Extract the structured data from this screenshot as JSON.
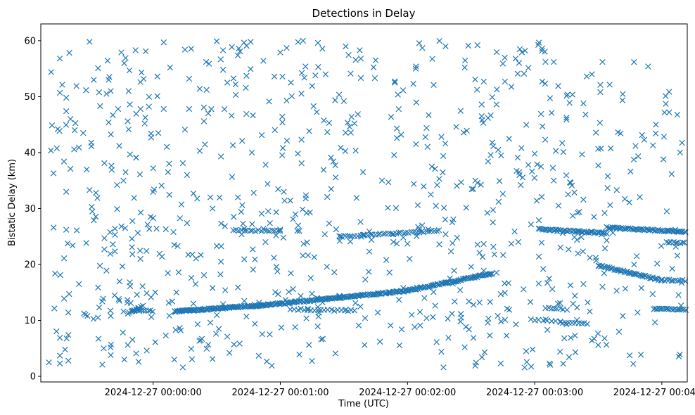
{
  "chart_data": {
    "type": "scatter",
    "title": "Detections in Delay",
    "xlabel": "Time (UTC)",
    "ylabel": "Bistatic Delay (km)",
    "marker": "x",
    "color": "#1f77b4",
    "xlim_seconds": [
      -53,
      252
    ],
    "ylim": [
      -1,
      63
    ],
    "x_ticks": [
      {
        "value": 0,
        "label": "2024-12-27 00:00:00"
      },
      {
        "value": 60,
        "label": "2024-12-27 00:01:00"
      },
      {
        "value": 120,
        "label": "2024-12-27 00:02:00"
      },
      {
        "value": 180,
        "label": "2024-12-27 00:03:00"
      },
      {
        "value": 240,
        "label": "2024-12-27 00:04:00"
      }
    ],
    "y_ticks": [
      0,
      10,
      20,
      30,
      40,
      50,
      60
    ],
    "track_segments": [
      {
        "x0": 10,
        "x1": 55,
        "y0": 11.6,
        "y1": 12.8,
        "n": 110
      },
      {
        "x0": 55,
        "x1": 120,
        "y0": 12.8,
        "y1": 15.3,
        "n": 120
      },
      {
        "x0": 120,
        "x1": 160,
        "y0": 15.3,
        "y1": 18.4,
        "n": 70
      },
      {
        "x0": 38,
        "x1": 60,
        "y0": 26.1,
        "y1": 26.0,
        "n": 18
      },
      {
        "x0": 88,
        "x1": 135,
        "y0": 25.0,
        "y1": 26.0,
        "n": 40
      },
      {
        "x0": 182,
        "x1": 214,
        "y0": 26.3,
        "y1": 25.6,
        "n": 50
      },
      {
        "x0": 214,
        "x1": 252,
        "y0": 26.6,
        "y1": 25.8,
        "n": 60
      },
      {
        "x0": 210,
        "x1": 240,
        "y0": 19.8,
        "y1": 17.2,
        "n": 45
      },
      {
        "x0": 240,
        "x1": 252,
        "y0": 17.2,
        "y1": 17.1,
        "n": 12
      },
      {
        "x0": 242,
        "x1": 252,
        "y0": 24.0,
        "y1": 23.8,
        "n": 10
      },
      {
        "x0": 236,
        "x1": 252,
        "y0": 12.1,
        "y1": 11.9,
        "n": 20
      },
      {
        "x0": 65,
        "x1": 95,
        "y0": 12.0,
        "y1": 11.7,
        "n": 20
      },
      {
        "x0": 185,
        "x1": 195,
        "y0": 12.3,
        "y1": 12.0,
        "n": 8
      },
      {
        "x0": 178,
        "x1": 192,
        "y0": 10.1,
        "y1": 9.9,
        "n": 8
      },
      {
        "x0": 192,
        "x1": 205,
        "y0": 9.6,
        "y1": 9.4,
        "n": 10
      },
      {
        "x0": -12,
        "x1": -5,
        "y0": 11.2,
        "y1": 12.5,
        "n": 10
      },
      {
        "x0": -10,
        "x1": 0,
        "y0": 11.8,
        "y1": 11.7,
        "n": 10
      }
    ],
    "random_noise": {
      "count": 520,
      "x_range": [
        -50,
        250
      ],
      "y_range": [
        1.5,
        60
      ]
    },
    "scattered_points": [
      [
        -47,
        36.3
      ],
      [
        -45,
        44.2
      ],
      [
        -44,
        56.8
      ],
      [
        -44,
        50.7
      ],
      [
        -44,
        6.9
      ],
      [
        -44,
        3.7
      ],
      [
        -44,
        2.3
      ],
      [
        -42,
        13.9
      ],
      [
        -42,
        21.1
      ],
      [
        -41,
        33.0
      ],
      [
        -41,
        26.2
      ],
      [
        -41,
        49.8
      ],
      [
        -41,
        47.4
      ],
      [
        -40,
        7.4
      ],
      [
        -40,
        2.8
      ],
      [
        -40,
        11.4
      ],
      [
        -39,
        46.0
      ],
      [
        -39,
        37.1
      ],
      [
        -38,
        23.4
      ],
      [
        -37,
        44.0
      ],
      [
        -36,
        26.1
      ],
      [
        -35,
        40.9
      ],
      [
        -35,
        16.5
      ],
      [
        -33,
        43.5
      ],
      [
        -32,
        11.0
      ],
      [
        -31,
        10.8
      ],
      [
        -30,
        59.8
      ],
      [
        -30,
        33.3
      ],
      [
        -29,
        30.3
      ],
      [
        -28,
        53.0
      ],
      [
        -28,
        27.9
      ],
      [
        -27,
        32.8
      ],
      [
        -26,
        10.5
      ],
      [
        -25,
        48.3
      ],
      [
        -24,
        13.4
      ],
      [
        -24,
        2.1
      ],
      [
        -23,
        38.1
      ],
      [
        -23,
        24.7
      ],
      [
        -23,
        22.7
      ],
      [
        -22,
        50.5
      ],
      [
        -22,
        18.9
      ],
      [
        -21,
        45.4
      ],
      [
        -21,
        53.0
      ],
      [
        -20,
        51.0
      ],
      [
        -20,
        3.8
      ],
      [
        -19,
        46.7
      ],
      [
        -19,
        23.6
      ],
      [
        -18,
        26.4
      ],
      [
        -18,
        25.3
      ],
      [
        -17,
        29.9
      ],
      [
        -17,
        34.2
      ],
      [
        -16,
        41.2
      ],
      [
        -16,
        13.5
      ],
      [
        -15,
        57.9
      ],
      [
        -15,
        26.8
      ],
      [
        -14,
        35.0
      ],
      [
        -14,
        11.6
      ],
      [
        -13,
        56.9
      ],
      [
        -13,
        36.5
      ],
      [
        -12,
        45.6
      ],
      [
        -12,
        5.6
      ],
      [
        -11,
        16.8
      ],
      [
        -11,
        48.6
      ],
      [
        -10,
        24.6
      ],
      [
        -9,
        31.9
      ],
      [
        -8,
        39.1
      ],
      [
        -8,
        4.1
      ],
      [
        -6,
        52.6
      ],
      [
        -6,
        21.0
      ],
      [
        -5,
        16.1
      ],
      [
        -4,
        45.2
      ],
      [
        -3,
        4.6
      ],
      [
        -2,
        48.2
      ],
      [
        -1,
        43.4
      ],
      [
        0,
        37.2
      ],
      [
        0,
        28.3
      ],
      [
        1,
        15.0
      ],
      [
        1,
        6.1
      ],
      [
        2,
        50.1
      ],
      [
        2,
        53.6
      ],
      [
        3,
        21.9
      ],
      [
        4,
        34.1
      ],
      [
        5,
        59.7
      ],
      [
        5,
        47.8
      ],
      [
        6,
        26.3
      ],
      [
        6,
        7.3
      ],
      [
        7,
        36.5
      ],
      [
        8,
        55.2
      ],
      [
        9,
        13.4
      ],
      [
        10,
        3.0
      ],
      [
        10,
        23.5
      ],
      [
        11,
        15.0
      ],
      [
        12,
        18.6
      ],
      [
        13,
        8.2
      ],
      [
        14,
        38.1
      ],
      [
        14,
        1.6
      ],
      [
        15,
        58.4
      ],
      [
        15,
        44.1
      ],
      [
        16,
        27.4
      ],
      [
        16,
        36.0
      ],
      [
        17,
        53.2
      ],
      [
        17,
        47.8
      ],
      [
        18,
        4.9
      ],
      [
        19,
        13.0
      ],
      [
        19,
        32.7
      ],
      [
        20,
        16.5
      ],
      [
        21,
        9.3
      ],
      [
        22,
        40.3
      ],
      [
        22,
        51.4
      ],
      [
        23,
        6.7
      ],
      [
        24,
        45.6
      ],
      [
        24,
        18.1
      ],
      [
        25,
        56.2
      ],
      [
        26,
        47.0
      ],
      [
        27,
        32.0
      ],
      [
        28,
        3.1
      ],
      [
        28,
        30.0
      ],
      [
        30,
        59.9
      ],
      [
        30,
        23.3
      ],
      [
        31,
        8.5
      ],
      [
        32,
        39.3
      ],
      [
        32,
        20.5
      ],
      [
        33,
        54.8
      ],
      [
        34,
        15.4
      ],
      [
        35,
        52.5
      ],
      [
        35,
        7.1
      ],
      [
        36,
        4.2
      ],
      [
        37,
        46.6
      ],
      [
        38,
        28.5
      ],
      [
        40,
        32.0
      ],
      [
        40,
        15.9
      ],
      [
        41,
        58.1
      ],
      [
        42,
        42.1
      ],
      [
        43,
        26.4
      ],
      [
        44,
        46.9
      ],
      [
        44,
        10.7
      ],
      [
        46,
        59.8
      ],
      [
        47,
        22.7
      ],
      [
        48,
        9.4
      ],
      [
        50,
        13.2
      ],
      [
        52,
        56.4
      ],
      [
        53,
        24.0
      ],
      [
        54,
        34.4
      ],
      [
        55,
        7.5
      ],
      [
        56,
        1.9
      ],
      [
        57,
        21.2
      ],
      [
        58,
        25.2
      ],
      [
        59,
        14.7
      ],
      [
        60,
        57.9
      ],
      [
        61,
        45.4
      ],
      [
        62,
        31.4
      ],
      [
        63,
        58.7
      ],
      [
        63,
        49.3
      ],
      [
        64,
        15.1
      ],
      [
        65,
        52.5
      ],
      [
        66,
        28.1
      ],
      [
        67,
        8.8
      ],
      [
        68,
        26.0
      ],
      [
        69,
        3.9
      ],
      [
        70,
        42.3
      ],
      [
        71,
        23.7
      ],
      [
        72,
        31.8
      ],
      [
        73,
        12.1
      ],
      [
        74,
        29.3
      ],
      [
        75,
        51.9
      ],
      [
        76,
        21.3
      ],
      [
        78,
        10.7
      ],
      [
        80,
        6.7
      ],
      [
        81,
        25.4
      ],
      [
        82,
        19.6
      ],
      [
        83,
        45.3
      ],
      [
        84,
        33.5
      ],
      [
        85,
        38.4
      ],
      [
        86,
        4.1
      ],
      [
        88,
        14.4
      ],
      [
        90,
        49.2
      ],
      [
        91,
        11.9
      ],
      [
        93,
        24.1
      ],
      [
        95,
        45.2
      ],
      [
        96,
        31.9
      ],
      [
        97,
        9.1
      ],
      [
        98,
        56.8
      ],
      [
        99,
        36.5
      ],
      [
        100,
        10.4
      ],
      [
        102,
        22.3
      ],
      [
        103,
        24.4
      ],
      [
        105,
        56.5
      ],
      [
        106,
        11.4
      ],
      [
        107,
        6.2
      ],
      [
        108,
        35.0
      ],
      [
        110,
        20.8
      ],
      [
        111,
        34.7
      ],
      [
        112,
        9.1
      ],
      [
        113,
        25.4
      ],
      [
        114,
        52.5
      ],
      [
        115,
        42.6
      ],
      [
        115,
        44.3
      ],
      [
        116,
        13.7
      ],
      [
        117,
        43.2
      ],
      [
        118,
        15.8
      ],
      [
        120,
        23.7
      ],
      [
        121,
        21.0
      ],
      [
        122,
        11.0
      ],
      [
        123,
        34.4
      ],
      [
        124,
        55.4
      ],
      [
        125,
        26.7
      ],
      [
        126,
        9.1
      ],
      [
        127,
        58.7
      ],
      [
        128,
        14.0
      ],
      [
        129,
        44.4
      ],
      [
        130,
        46.7
      ],
      [
        131,
        32.5
      ],
      [
        132,
        10.6
      ],
      [
        133,
        37.1
      ],
      [
        134,
        34.2
      ],
      [
        135,
        35.3
      ],
      [
        135,
        23.6
      ],
      [
        136,
        42.8
      ],
      [
        136,
        4.4
      ],
      [
        137,
        1.6
      ],
      [
        138,
        25.4
      ],
      [
        139,
        10.3
      ],
      [
        140,
        17.5
      ],
      [
        142,
        18.9
      ],
      [
        143,
        44.6
      ],
      [
        145,
        9.8
      ],
      [
        147,
        5.2
      ],
      [
        147,
        55.2
      ],
      [
        148,
        43.9
      ],
      [
        149,
        13.4
      ],
      [
        149,
        8.4
      ],
      [
        150,
        19.6
      ],
      [
        151,
        33.5
      ],
      [
        152,
        1.9
      ],
      [
        152,
        35.0
      ],
      [
        153,
        34.6
      ],
      [
        153,
        59.2
      ],
      [
        154,
        13.2
      ],
      [
        155,
        48.6
      ],
      [
        155,
        46.5
      ],
      [
        156,
        52.7
      ],
      [
        156,
        18.9
      ],
      [
        158,
        46.2
      ],
      [
        159,
        13.3
      ],
      [
        160,
        49.9
      ],
      [
        160,
        41.8
      ],
      [
        161,
        21.8
      ],
      [
        162,
        48.6
      ],
      [
        163,
        31.2
      ],
      [
        164,
        14.7
      ],
      [
        164,
        2.3
      ],
      [
        165,
        55.9
      ],
      [
        166,
        52.7
      ],
      [
        167,
        12.1
      ],
      [
        168,
        11.9
      ],
      [
        169,
        23.7
      ],
      [
        171,
        56.8
      ],
      [
        172,
        39.1
      ],
      [
        172,
        54.1
      ],
      [
        173,
        58.5
      ],
      [
        174,
        57.9
      ],
      [
        175,
        54.1
      ],
      [
        176,
        4.5
      ],
      [
        177,
        37.8
      ],
      [
        178,
        13.3
      ],
      [
        179,
        4.8
      ],
      [
        180,
        39.8
      ],
      [
        181,
        31.4
      ],
      [
        182,
        21.4
      ],
      [
        182,
        27.9
      ],
      [
        183,
        46.9
      ],
      [
        183,
        37.5
      ],
      [
        184,
        19.2
      ],
      [
        185,
        42.3
      ],
      [
        186,
        16.7
      ],
      [
        186,
        8.3
      ],
      [
        187,
        2.3
      ],
      [
        188,
        47.1
      ],
      [
        189,
        56.2
      ],
      [
        189,
        35.0
      ],
      [
        190,
        40.3
      ],
      [
        191,
        13.0
      ],
      [
        192,
        4.4
      ],
      [
        193,
        41.7
      ],
      [
        194,
        6.8
      ],
      [
        195,
        45.9
      ],
      [
        196,
        22.7
      ],
      [
        197,
        6.9
      ],
      [
        197,
        34.6
      ],
      [
        198,
        28.7
      ],
      [
        199,
        14.4
      ],
      [
        200,
        12.3
      ],
      [
        200,
        24.4
      ],
      [
        201,
        29.4
      ],
      [
        202,
        24.9
      ],
      [
        203,
        16.5
      ],
      [
        203,
        48.8
      ],
      [
        204,
        46.8
      ],
      [
        205,
        13.2
      ],
      [
        206,
        21.2
      ],
      [
        207,
        54.0
      ],
      [
        207,
        6.4
      ],
      [
        208,
        28.5
      ],
      [
        209,
        20.7
      ],
      [
        210,
        37.7
      ],
      [
        210,
        5.6
      ],
      [
        211,
        52.1
      ],
      [
        211,
        50.8
      ],
      [
        212,
        56.2
      ],
      [
        212,
        16.0
      ],
      [
        213,
        6.8
      ],
      [
        213,
        29.2
      ],
      [
        214,
        24.3
      ],
      [
        -47,
        26.6
      ],
      [
        -20,
        10.8
      ],
      [
        -7,
        11.9
      ],
      [
        18,
        17.6
      ],
      [
        27,
        9.6
      ],
      [
        33,
        12.9
      ],
      [
        52,
        26.4
      ],
      [
        66,
        15.6
      ],
      [
        69,
        26.0
      ],
      [
        88,
        24.2
      ],
      [
        102,
        25.9
      ],
      [
        118,
        24.8
      ],
      [
        129,
        10.4
      ],
      [
        141,
        11.2
      ],
      [
        166,
        10.1
      ],
      [
        195,
        9.3
      ],
      [
        203,
        31.6
      ],
      [
        206,
        11.6
      ]
    ]
  }
}
